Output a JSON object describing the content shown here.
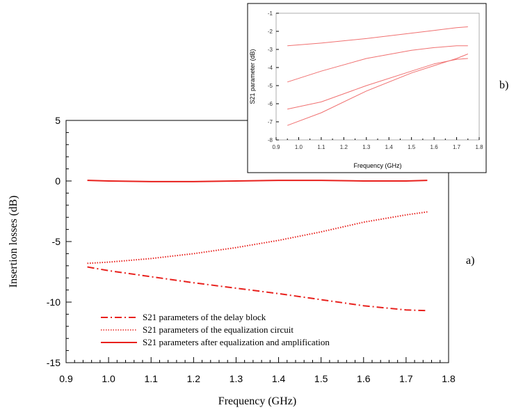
{
  "chart_data": [
    {
      "id": "main",
      "panel_label": "a)",
      "type": "line",
      "xlabel": "Frequency (GHz)",
      "ylabel": "Insertion losses (dB)",
      "xlim": [
        0.9,
        1.8
      ],
      "ylim": [
        -15,
        5
      ],
      "x_ticks": [
        "0.9",
        "1.0",
        "1.1",
        "1.2",
        "1.3",
        "1.4",
        "1.5",
        "1.6",
        "1.7",
        "1.8"
      ],
      "y_ticks": [
        "5",
        "0",
        "-5",
        "-10",
        "-15"
      ],
      "grid": false,
      "legend_position": "lower-left",
      "series": [
        {
          "name": "S21 parameters of the delay block",
          "style": "dash-dot",
          "color": "#e8201c",
          "x": [
            0.95,
            1.0,
            1.1,
            1.2,
            1.3,
            1.4,
            1.5,
            1.6,
            1.7,
            1.75
          ],
          "y": [
            -7.1,
            -7.4,
            -7.9,
            -8.4,
            -8.85,
            -9.3,
            -9.8,
            -10.3,
            -10.65,
            -10.7
          ]
        },
        {
          "name": "S21 parameters of the equalization circuit",
          "style": "dotted",
          "color": "#e8201c",
          "x": [
            0.95,
            1.0,
            1.1,
            1.2,
            1.3,
            1.4,
            1.5,
            1.6,
            1.7,
            1.75
          ],
          "y": [
            -6.8,
            -6.7,
            -6.4,
            -6.0,
            -5.5,
            -4.9,
            -4.2,
            -3.4,
            -2.8,
            -2.55
          ]
        },
        {
          "name": "S21 parameters after equalization and amplification",
          "style": "solid",
          "color": "#e8201c",
          "x": [
            0.95,
            1.0,
            1.1,
            1.2,
            1.3,
            1.4,
            1.5,
            1.6,
            1.7,
            1.75
          ],
          "y": [
            0.05,
            0.0,
            -0.05,
            -0.05,
            0.0,
            0.05,
            0.05,
            0.0,
            0.0,
            0.05
          ]
        }
      ]
    },
    {
      "id": "inset",
      "panel_label": "b)",
      "type": "line",
      "xlabel": "Frequency (GHz)",
      "ylabel": "S21 parameter (dB)",
      "xlim": [
        0.9,
        1.8
      ],
      "ylim": [
        -8,
        -1
      ],
      "x_ticks": [
        "0.9",
        "1.0",
        "1.1",
        "1.2",
        "1.3",
        "1.4",
        "1.5",
        "1.6",
        "1.7",
        "1.8"
      ],
      "y_ticks": [
        "-1",
        "-2",
        "-3",
        "-4",
        "-5",
        "-6",
        "-7",
        "-8"
      ],
      "grid": false,
      "series": [
        {
          "color": "#f07070",
          "x": [
            0.95,
            1.1,
            1.3,
            1.5,
            1.6,
            1.7,
            1.75
          ],
          "y": [
            -2.8,
            -2.65,
            -2.4,
            -2.1,
            -1.95,
            -1.8,
            -1.75
          ]
        },
        {
          "color": "#f07070",
          "x": [
            0.95,
            1.1,
            1.3,
            1.5,
            1.6,
            1.7,
            1.75
          ],
          "y": [
            -4.8,
            -4.2,
            -3.5,
            -3.05,
            -2.9,
            -2.8,
            -2.8
          ]
        },
        {
          "color": "#f07070",
          "x": [
            0.95,
            1.1,
            1.3,
            1.5,
            1.6,
            1.7,
            1.75
          ],
          "y": [
            -6.3,
            -5.9,
            -5.0,
            -4.2,
            -3.8,
            -3.55,
            -3.5
          ]
        },
        {
          "color": "#f07070",
          "x": [
            0.95,
            1.1,
            1.3,
            1.5,
            1.6,
            1.7,
            1.75
          ],
          "y": [
            -7.2,
            -6.5,
            -5.3,
            -4.3,
            -3.9,
            -3.5,
            -3.25
          ]
        }
      ]
    }
  ]
}
